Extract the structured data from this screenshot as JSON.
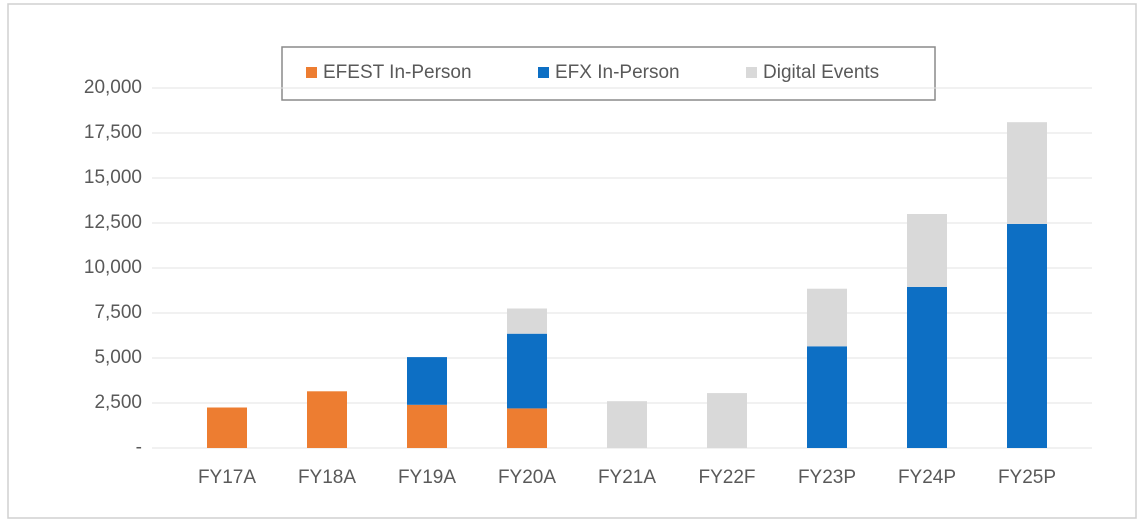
{
  "chart_data": {
    "type": "stacked_bar",
    "categories": [
      "FY17A",
      "FY18A",
      "FY19A",
      "FY20A",
      "FY21A",
      "FY22F",
      "FY23P",
      "FY24P",
      "FY25P"
    ],
    "series": [
      {
        "name": "EFEST In-Person",
        "color": "#ed7d31",
        "values": [
          2250,
          3150,
          2400,
          2200,
          0,
          0,
          0,
          0,
          0
        ]
      },
      {
        "name": "EFX In-Person",
        "color": "#0d6fc4",
        "values": [
          0,
          0,
          2650,
          4150,
          0,
          0,
          5650,
          8950,
          12450
        ]
      },
      {
        "name": "Digital Events",
        "color": "#d9d9d9",
        "values": [
          0,
          0,
          0,
          1400,
          2600,
          3050,
          3200,
          4050,
          5650
        ]
      }
    ],
    "ylim": [
      0,
      20000
    ],
    "yticks": [
      {
        "value": 0,
        "label": "-"
      },
      {
        "value": 2500,
        "label": "2,500"
      },
      {
        "value": 5000,
        "label": "5,000"
      },
      {
        "value": 7500,
        "label": "7,500"
      },
      {
        "value": 10000,
        "label": "10,000"
      },
      {
        "value": 12500,
        "label": "12,500"
      },
      {
        "value": 15000,
        "label": "15,000"
      },
      {
        "value": 17500,
        "label": "17,500"
      },
      {
        "value": 20000,
        "label": "20,000"
      }
    ],
    "grid": true,
    "legend": "top"
  }
}
